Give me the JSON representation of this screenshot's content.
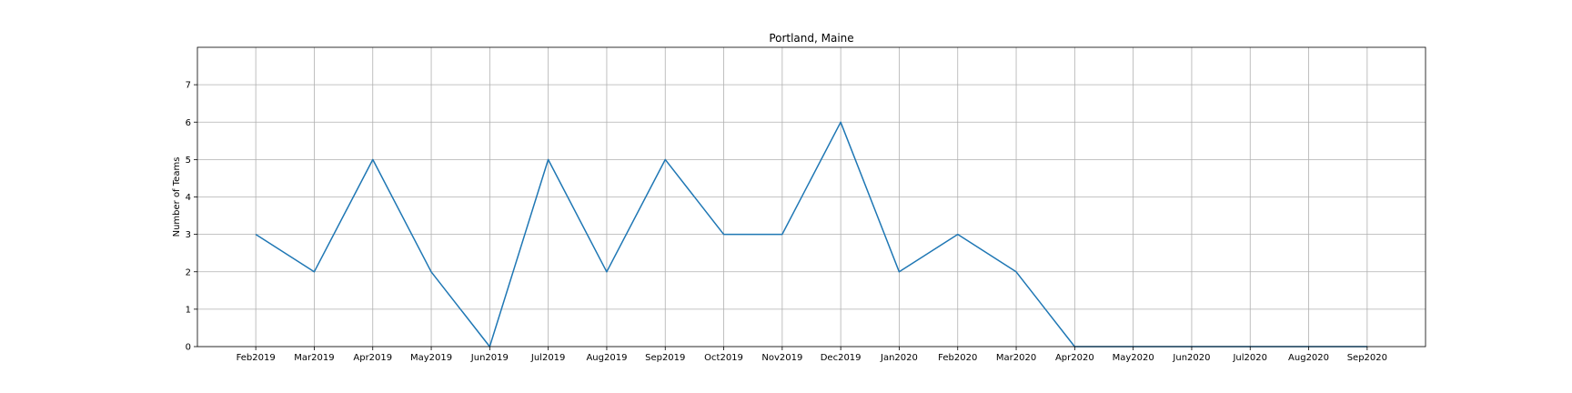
{
  "chart_data": {
    "type": "line",
    "title": "Portland, Maine",
    "xlabel": "",
    "ylabel": "Number of Teams",
    "categories": [
      "Feb2019",
      "Mar2019",
      "Apr2019",
      "May2019",
      "Jun2019",
      "Jul2019",
      "Aug2019",
      "Sep2019",
      "Oct2019",
      "Nov2019",
      "Dec2019",
      "Jan2020",
      "Feb2020",
      "Mar2020",
      "Apr2020",
      "May2020",
      "Jun2020",
      "Jul2020",
      "Aug2020",
      "Sep2020"
    ],
    "series": [
      {
        "values": [
          3,
          2,
          5,
          2,
          0,
          5,
          2,
          5,
          3,
          3,
          6,
          2,
          3,
          2,
          0,
          0,
          0,
          0,
          0,
          0
        ],
        "color": "#1f77b4"
      }
    ],
    "yticks": [
      0,
      1,
      2,
      3,
      4,
      5,
      6,
      7
    ],
    "ylim": [
      0,
      8
    ],
    "grid": true,
    "legend": "none"
  }
}
